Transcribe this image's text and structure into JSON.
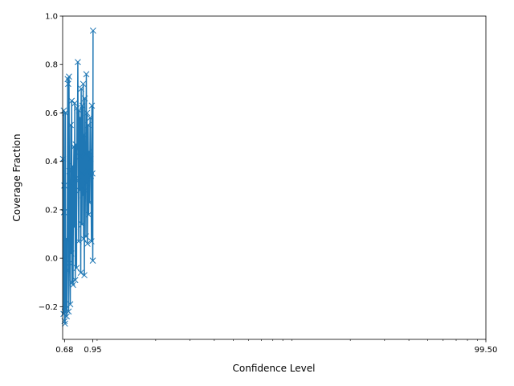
{
  "chart_data": {
    "type": "line",
    "xlabel": "Confidence Level",
    "ylabel": "Coverage Fraction",
    "xscale": "log",
    "xlim": [
      0.665,
      99.5
    ],
    "ylim": [
      -0.335,
      1.0
    ],
    "xticks": [
      {
        "value": 0.68,
        "label": "0.68"
      },
      {
        "value": 0.95,
        "label": "0.95"
      },
      {
        "value": 99.5,
        "label": "99.50"
      }
    ],
    "yticks": [
      {
        "value": -0.2,
        "label": "−0.2"
      },
      {
        "value": 0.0,
        "label": "0.0"
      },
      {
        "value": 0.2,
        "label": "0.2"
      },
      {
        "value": 0.4,
        "label": "0.4"
      },
      {
        "value": 0.6,
        "label": "0.6"
      },
      {
        "value": 0.8,
        "label": "0.8"
      },
      {
        "value": 1.0,
        "label": "1.0"
      }
    ],
    "grid": false,
    "legend": "none",
    "series": [
      {
        "color": "#1f77b4",
        "marker": "x",
        "x": [
          0.668,
          0.672,
          0.674,
          0.676,
          0.678,
          0.68,
          0.682,
          0.684,
          0.686,
          0.69,
          0.694,
          0.698,
          0.702,
          0.706,
          0.71,
          0.714,
          0.717,
          0.72,
          0.724,
          0.728,
          0.732,
          0.736,
          0.74,
          0.744,
          0.748,
          0.752,
          0.756,
          0.76,
          0.764,
          0.768,
          0.772,
          0.776,
          0.78,
          0.784,
          0.788,
          0.792,
          0.796,
          0.8,
          0.804,
          0.808,
          0.812,
          0.816,
          0.82,
          0.824,
          0.828,
          0.832,
          0.836,
          0.84,
          0.844,
          0.848,
          0.852,
          0.856,
          0.86,
          0.864,
          0.868,
          0.872,
          0.876,
          0.88,
          0.884,
          0.888,
          0.892,
          0.896,
          0.9,
          0.905,
          0.91,
          0.915,
          0.92,
          0.925,
          0.93,
          0.935,
          0.94,
          0.945,
          0.95,
          0.953
        ],
        "y": [
          0.41,
          -0.23,
          0.61,
          0.19,
          0.3,
          -0.26,
          -0.22,
          -0.27,
          0.6,
          -0.21,
          0.08,
          -0.24,
          -0.05,
          0.74,
          0.72,
          -0.22,
          0.75,
          0.36,
          -0.02,
          -0.19,
          0.55,
          0.02,
          0.65,
          -0.1,
          0.38,
          -0.11,
          0.3,
          0.46,
          0.13,
          0.64,
          -0.09,
          0.47,
          0.33,
          -0.04,
          0.62,
          0.45,
          0.81,
          0.32,
          0.07,
          0.61,
          0.28,
          0.42,
          0.58,
          -0.06,
          0.7,
          0.35,
          0.14,
          0.63,
          0.26,
          0.72,
          0.08,
          0.51,
          -0.07,
          0.66,
          0.28,
          0.43,
          0.09,
          0.76,
          0.31,
          0.6,
          0.06,
          0.36,
          0.55,
          0.18,
          0.44,
          0.23,
          0.58,
          0.41,
          0.34,
          0.07,
          0.63,
          0.35,
          -0.01,
          0.94
        ]
      }
    ]
  }
}
